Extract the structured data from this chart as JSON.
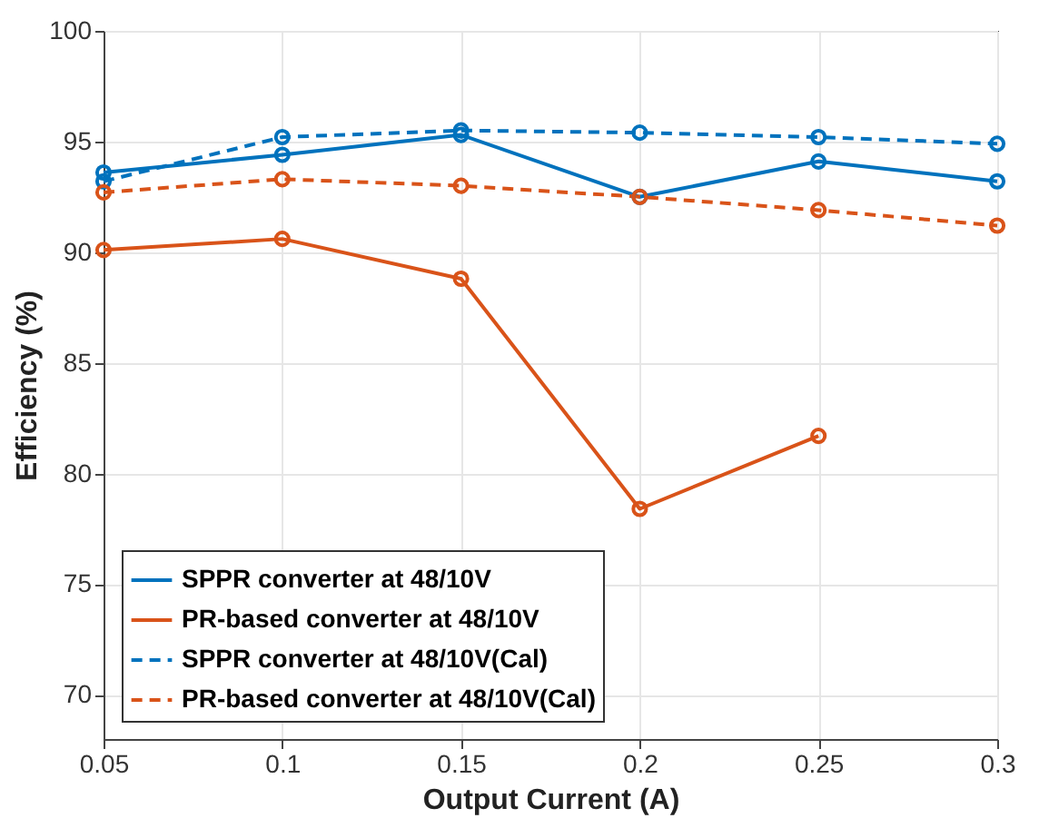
{
  "chart_data": {
    "type": "line",
    "xlabel": "Output Current (A)",
    "ylabel": "Efficiency (%)",
    "x": [
      0.05,
      0.1,
      0.15,
      0.2,
      0.25,
      0.3
    ],
    "series": [
      {
        "name": "SPPR converter at 48/10V",
        "color": "#0072bd",
        "values": [
          93.6,
          94.4,
          95.3,
          92.5,
          94.1,
          93.2
        ],
        "line_style": "solid"
      },
      {
        "name": "PR-based converter at 48/10V",
        "color": "#d95319",
        "values": [
          90.1,
          90.6,
          88.8,
          78.4,
          81.7,
          null
        ],
        "line_style": "solid"
      },
      {
        "name": "SPPR converter at 48/10V(Cal)",
        "color": "#0072bd",
        "values": [
          93.2,
          95.2,
          95.5,
          95.4,
          95.2,
          94.9
        ],
        "line_style": "dashed"
      },
      {
        "name": "PR-based converter at 48/10V(Cal)",
        "color": "#d95319",
        "values": [
          92.7,
          93.3,
          93.0,
          92.5,
          91.9,
          91.2
        ],
        "line_style": "dashed"
      }
    ],
    "xlim": [
      0.05,
      0.3
    ],
    "xticks": [
      0.05,
      0.1,
      0.15,
      0.2,
      0.25,
      0.3
    ],
    "ylim": [
      68,
      100
    ],
    "yticks": [
      70,
      75,
      80,
      85,
      90,
      95,
      100
    ],
    "grid": true,
    "legend": "bottom left",
    "marker": "circle"
  }
}
